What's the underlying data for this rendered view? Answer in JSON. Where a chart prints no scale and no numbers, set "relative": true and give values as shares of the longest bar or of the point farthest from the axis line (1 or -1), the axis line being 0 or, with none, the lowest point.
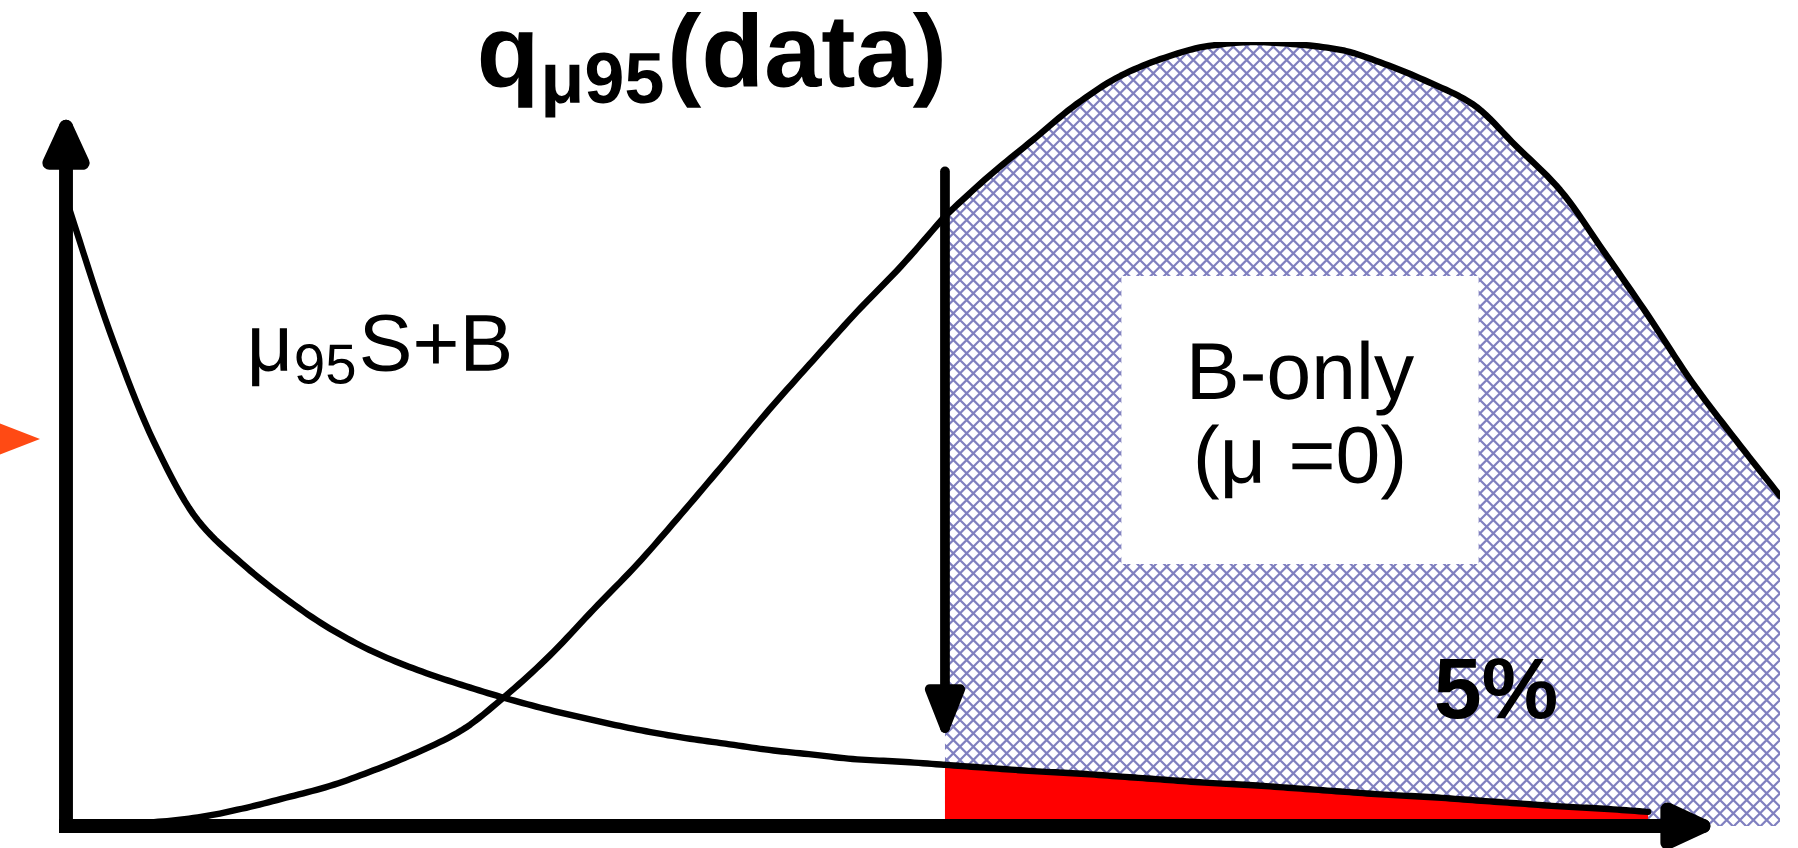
{
  "chart_data": {
    "type": "line",
    "relative": true,
    "title": "q$_{μ95}$(data)",
    "categories": [
      null,
      null,
      null,
      null,
      null,
      null,
      null,
      null,
      null,
      null,
      null,
      null,
      null,
      null,
      null,
      null,
      null,
      null,
      null,
      null,
      null,
      null,
      null,
      null,
      null,
      null,
      null,
      null,
      null,
      null,
      null,
      null,
      null,
      null,
      null,
      null,
      null,
      null,
      null,
      null
    ],
    "series": [
      {
        "name": "μ$_{95}$S+B",
        "color": "#000000",
        "values": [
          0.8,
          0.63,
          0.49,
          0.39,
          0.335,
          0.29,
          0.252,
          0.222,
          0.199,
          0.18,
          0.163,
          0.148,
          0.135,
          0.123,
          0.113,
          0.105,
          0.097,
          0.091,
          0.085,
          0.082,
          0.078,
          null,
          null,
          null,
          null,
          null,
          null,
          null,
          null,
          null,
          null,
          null,
          null,
          null,
          null,
          null,
          null,
          null,
          null,
          null
        ]
      },
      {
        "type": "area",
        "color": "#ff0000",
        "values": [
          null,
          null,
          null,
          null,
          null,
          null,
          null,
          null,
          null,
          null,
          null,
          null,
          null,
          null,
          null,
          null,
          null,
          null,
          null,
          null,
          0.078,
          0.074,
          0.07,
          0.067,
          0.063,
          0.059,
          0.055,
          0.052,
          0.048,
          0.044,
          0.04,
          0.037,
          0.033,
          0.029,
          0.025,
          0.022,
          0.018,
          null,
          null,
          null
        ]
      },
      {
        "color": "#000000",
        "values": [
          0,
          0.003,
          0.005,
          0.011,
          0.022,
          0.036,
          0.051,
          0.071,
          0.094,
          0.122,
          0.166,
          0.217,
          0.276,
          0.334,
          0.398,
          0.464,
          0.531,
          0.594,
          0.656,
          0.714,
          0.778,
          null,
          null,
          null,
          null,
          null,
          null,
          null,
          null,
          null,
          null,
          null,
          null,
          null,
          null,
          null,
          null,
          null,
          null,
          null
        ]
      },
      {
        "type": "area",
        "name": "B-only\n(μ =0)",
        "color": "#8080c0",
        "values": [
          null,
          null,
          null,
          null,
          null,
          null,
          null,
          null,
          null,
          null,
          null,
          null,
          null,
          null,
          null,
          null,
          null,
          null,
          null,
          null,
          0.778,
          0.829,
          0.875,
          0.921,
          0.957,
          0.98,
          0.995,
          1.0,
          0.997,
          0.99,
          0.972,
          0.949,
          0.921,
          0.867,
          0.811,
          0.732,
          0.651,
          0.566,
          0.492,
          0.421
        ]
      }
    ],
    "annotations": [
      "5%"
    ],
    "tick_labels": false,
    "legend": false
  }
}
